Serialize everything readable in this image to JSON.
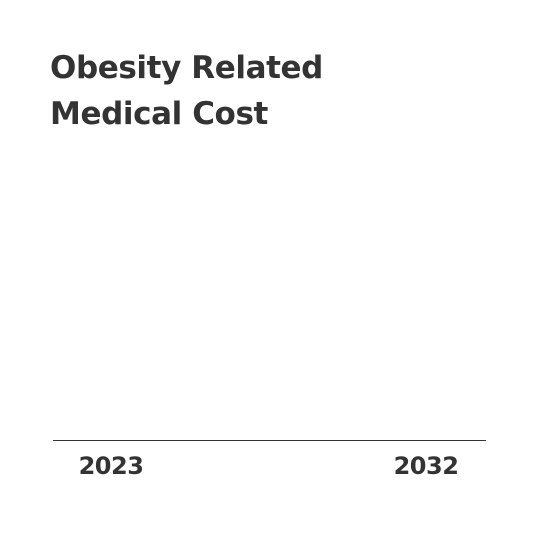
{
  "chart_data": {
    "type": "bar",
    "title_lines": [
      "Obesity Related",
      "Medical Cost"
    ],
    "categories": [
      "2023",
      "2032"
    ],
    "series": [],
    "xlabel": "",
    "ylabel": "",
    "grid": false,
    "legend": "none"
  },
  "colors": {
    "text": "#333333",
    "axis": "#333333",
    "background": "#ffffff"
  }
}
